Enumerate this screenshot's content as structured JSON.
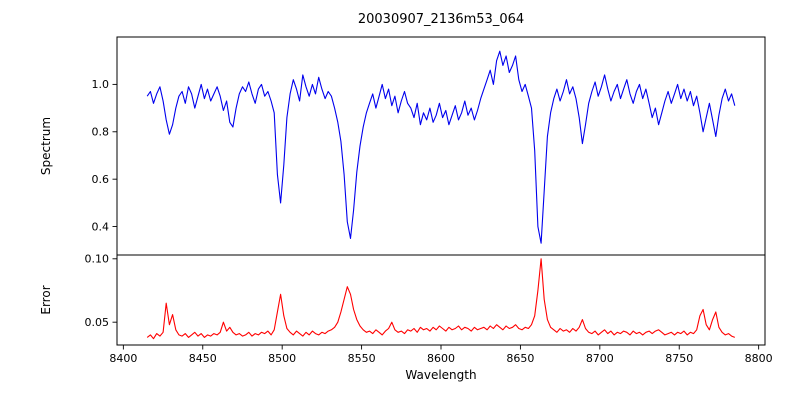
{
  "figure": {
    "title": "20030907_2136m53_064",
    "background": "#ffffff"
  },
  "x_axis": {
    "label": "Wavelength",
    "xlim": [
      8396,
      8804
    ],
    "ticks": [
      8400,
      8450,
      8500,
      8550,
      8600,
      8650,
      8700,
      8750,
      8800
    ],
    "tick_labels": [
      "8400",
      "8450",
      "8500",
      "8550",
      "8600",
      "8650",
      "8700",
      "8750",
      "8800"
    ]
  },
  "chart_data": [
    {
      "type": "line",
      "name": "spectrum",
      "ylabel": "Spectrum",
      "color": "#0000ee",
      "ylim": [
        0.28,
        1.2
      ],
      "yticks": [
        0.4,
        0.6,
        0.8,
        1.0
      ],
      "ytick_labels": [
        "0.4",
        "0.6",
        "0.8",
        "1.0"
      ],
      "x_start": 8415,
      "x_step": 2,
      "notes": "Noisy stellar spectrum near 1.0 with deep Ca II triplet absorption dips near 8498, 8542, 8662 and an emission bump near 8635-8650",
      "values": [
        0.95,
        0.97,
        0.92,
        0.96,
        0.99,
        0.93,
        0.85,
        0.79,
        0.83,
        0.9,
        0.95,
        0.97,
        0.92,
        0.99,
        0.96,
        0.9,
        0.95,
        1.0,
        0.94,
        0.98,
        0.93,
        0.96,
        0.99,
        0.95,
        0.89,
        0.93,
        0.84,
        0.82,
        0.9,
        0.96,
        0.99,
        0.97,
        1.01,
        0.96,
        0.92,
        0.98,
        1.0,
        0.95,
        0.97,
        0.93,
        0.88,
        0.62,
        0.5,
        0.66,
        0.86,
        0.96,
        1.02,
        0.98,
        0.93,
        1.04,
        0.99,
        0.95,
        1.0,
        0.96,
        1.03,
        0.98,
        0.94,
        0.97,
        0.95,
        0.9,
        0.84,
        0.76,
        0.62,
        0.42,
        0.35,
        0.47,
        0.63,
        0.74,
        0.82,
        0.88,
        0.92,
        0.96,
        0.9,
        0.95,
        1.0,
        0.94,
        0.98,
        0.91,
        0.95,
        0.88,
        0.93,
        0.97,
        0.92,
        0.9,
        0.86,
        0.92,
        0.83,
        0.88,
        0.85,
        0.9,
        0.84,
        0.87,
        0.92,
        0.86,
        0.89,
        0.83,
        0.87,
        0.91,
        0.85,
        0.88,
        0.93,
        0.87,
        0.9,
        0.85,
        0.89,
        0.94,
        0.98,
        1.02,
        1.06,
        1.0,
        1.1,
        1.14,
        1.08,
        1.12,
        1.05,
        1.08,
        1.12,
        1.02,
        0.97,
        1.0,
        0.95,
        0.9,
        0.72,
        0.4,
        0.33,
        0.55,
        0.78,
        0.88,
        0.94,
        0.98,
        0.93,
        0.97,
        1.02,
        0.96,
        0.99,
        0.94,
        0.86,
        0.75,
        0.83,
        0.92,
        0.97,
        1.01,
        0.95,
        0.99,
        1.04,
        0.98,
        0.93,
        0.97,
        1.0,
        0.94,
        0.98,
        1.02,
        0.96,
        0.92,
        0.97,
        1.0,
        0.94,
        0.98,
        0.92,
        0.86,
        0.9,
        0.83,
        0.88,
        0.93,
        0.97,
        0.92,
        0.96,
        1.0,
        0.94,
        0.98,
        0.93,
        0.97,
        0.91,
        0.95,
        0.88,
        0.8,
        0.86,
        0.92,
        0.85,
        0.78,
        0.87,
        0.94,
        0.98,
        0.93,
        0.96,
        0.91
      ]
    },
    {
      "type": "line",
      "name": "error",
      "ylabel": "Error",
      "color": "#ff0000",
      "ylim": [
        0.032,
        0.103
      ],
      "yticks": [
        0.05,
        0.1
      ],
      "ytick_labels": [
        "0.05",
        "0.10"
      ],
      "x_start": 8415,
      "x_step": 2,
      "notes": "Error spectrum near 0.04 with spikes aligned to the absorption lines; strongest spike reaches 0.10 near 8662",
      "values": [
        0.038,
        0.04,
        0.037,
        0.041,
        0.039,
        0.042,
        0.065,
        0.048,
        0.056,
        0.044,
        0.04,
        0.039,
        0.041,
        0.038,
        0.04,
        0.042,
        0.039,
        0.041,
        0.038,
        0.04,
        0.039,
        0.041,
        0.04,
        0.042,
        0.05,
        0.043,
        0.046,
        0.042,
        0.04,
        0.041,
        0.039,
        0.04,
        0.042,
        0.039,
        0.041,
        0.04,
        0.042,
        0.041,
        0.043,
        0.04,
        0.044,
        0.058,
        0.072,
        0.055,
        0.045,
        0.042,
        0.04,
        0.043,
        0.041,
        0.039,
        0.042,
        0.04,
        0.043,
        0.041,
        0.04,
        0.042,
        0.041,
        0.043,
        0.044,
        0.046,
        0.05,
        0.058,
        0.068,
        0.078,
        0.072,
        0.06,
        0.052,
        0.047,
        0.044,
        0.042,
        0.043,
        0.041,
        0.044,
        0.042,
        0.04,
        0.043,
        0.045,
        0.05,
        0.044,
        0.042,
        0.043,
        0.041,
        0.044,
        0.043,
        0.045,
        0.042,
        0.046,
        0.044,
        0.045,
        0.043,
        0.046,
        0.044,
        0.047,
        0.045,
        0.043,
        0.046,
        0.044,
        0.045,
        0.047,
        0.044,
        0.046,
        0.045,
        0.043,
        0.046,
        0.044,
        0.045,
        0.046,
        0.044,
        0.047,
        0.045,
        0.048,
        0.046,
        0.044,
        0.047,
        0.045,
        0.046,
        0.048,
        0.045,
        0.044,
        0.046,
        0.045,
        0.048,
        0.055,
        0.075,
        0.1,
        0.068,
        0.052,
        0.046,
        0.044,
        0.042,
        0.045,
        0.043,
        0.044,
        0.042,
        0.045,
        0.043,
        0.046,
        0.052,
        0.045,
        0.042,
        0.041,
        0.043,
        0.04,
        0.042,
        0.044,
        0.041,
        0.043,
        0.04,
        0.042,
        0.041,
        0.043,
        0.042,
        0.04,
        0.043,
        0.041,
        0.042,
        0.04,
        0.042,
        0.043,
        0.041,
        0.043,
        0.044,
        0.042,
        0.04,
        0.041,
        0.042,
        0.04,
        0.042,
        0.041,
        0.043,
        0.04,
        0.042,
        0.041,
        0.044,
        0.055,
        0.06,
        0.048,
        0.044,
        0.052,
        0.058,
        0.046,
        0.042,
        0.04,
        0.041,
        0.039,
        0.038
      ]
    }
  ]
}
